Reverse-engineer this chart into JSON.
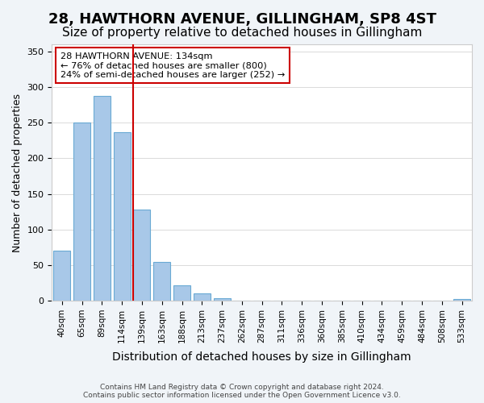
{
  "title": "28, HAWTHORN AVENUE, GILLINGHAM, SP8 4ST",
  "subtitle": "Size of property relative to detached houses in Gillingham",
  "xlabel": "Distribution of detached houses by size in Gillingham",
  "ylabel": "Number of detached properties",
  "bar_labels": [
    "40sqm",
    "65sqm",
    "89sqm",
    "114sqm",
    "139sqm",
    "163sqm",
    "188sqm",
    "213sqm",
    "237sqm",
    "262sqm",
    "287sqm",
    "311sqm",
    "336sqm",
    "360sqm",
    "385sqm",
    "410sqm",
    "434sqm",
    "459sqm",
    "484sqm",
    "508sqm",
    "533sqm"
  ],
  "bar_values": [
    70,
    250,
    287,
    237,
    128,
    54,
    22,
    10,
    4,
    0,
    0,
    0,
    0,
    0,
    0,
    0,
    0,
    0,
    0,
    0,
    2
  ],
  "bar_color": "#a8c8e8",
  "bar_edge_color": "#6aaad4",
  "vline_pos": 3.575,
  "vline_color": "#cc0000",
  "ylim": [
    0,
    360
  ],
  "yticks": [
    0,
    50,
    100,
    150,
    200,
    250,
    300,
    350
  ],
  "annotation_title": "28 HAWTHORN AVENUE: 134sqm",
  "annotation_line1": "← 76% of detached houses are smaller (800)",
  "annotation_line2": "24% of semi-detached houses are larger (252) →",
  "annotation_box_color": "#ffffff",
  "annotation_box_edge": "#cc0000",
  "footer_line1": "Contains HM Land Registry data © Crown copyright and database right 2024.",
  "footer_line2": "Contains public sector information licensed under the Open Government Licence v3.0.",
  "background_color": "#f0f4f8",
  "plot_background": "#ffffff",
  "title_fontsize": 13,
  "subtitle_fontsize": 11
}
